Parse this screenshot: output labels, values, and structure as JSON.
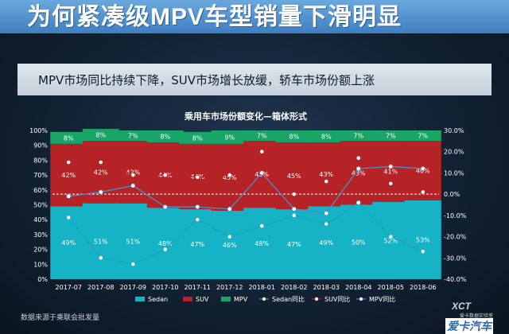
{
  "headline": "为何紧凑级MPV车型销量下滑明显",
  "subtitle": "MPV市场同比持续下降，SUV市场增长放缓，轿车市场份额上涨",
  "source": "数据来源于乘联会批发量",
  "logo": {
    "top": "XCT",
    "sub": "爱卡数据实验室",
    "main": "爱卡汽车"
  },
  "colors": {
    "sedan": "#16b3c6",
    "suv": "#b52326",
    "mpv": "#1aa568",
    "sedan_yoy": "#1aa6b8",
    "suv_yoy": "#b52326",
    "mpv_yoy": "#4a8fd0"
  },
  "chart_data": {
    "type": "bar",
    "stacked": true,
    "title": "乘用车市场份额变化—箱体形式",
    "categories": [
      "2017-07",
      "2017-08",
      "2017-09",
      "2017-10",
      "2017-11",
      "2017-12",
      "2018-01",
      "2018-02",
      "2018-03",
      "2018-04",
      "2018-05",
      "2018-06"
    ],
    "series": [
      {
        "name": "Sedan",
        "values": [
          49,
          51,
          51,
          48,
          47,
          46,
          48,
          47,
          49,
          50,
          52,
          53
        ],
        "labels": [
          "49%",
          "51%",
          "51%",
          "48%",
          "47%",
          "46%",
          "48%",
          "47%",
          "49%",
          "50%",
          "52%",
          "53%"
        ]
      },
      {
        "name": "SUV",
        "values": [
          42,
          42,
          42,
          44,
          44,
          45,
          45,
          45,
          43,
          43,
          41,
          40
        ],
        "labels": [
          "42%",
          "42%",
          "42%",
          "44%",
          "44%",
          "45%",
          "45%",
          "45%",
          "43%",
          "43%",
          "41%",
          "40%"
        ]
      },
      {
        "name": "MPV",
        "values": [
          8,
          8,
          7,
          8,
          8,
          9,
          7,
          8,
          8,
          7,
          7,
          7
        ],
        "labels": [
          "8%",
          "8%",
          "7%",
          "8%",
          "8%",
          "9%",
          "7%",
          "8%",
          "8%",
          "7%",
          "7%",
          "7%"
        ]
      }
    ],
    "line_series": [
      {
        "name": "Sedan同比",
        "values": [
          -11,
          -30,
          -33,
          -26,
          -12,
          -20,
          -15,
          -10,
          -14,
          -4,
          -20,
          -27
        ]
      },
      {
        "name": "SUV同比",
        "values": [
          15,
          15,
          9,
          9,
          8,
          9,
          20,
          0,
          6,
          17,
          5,
          1
        ]
      },
      {
        "name": "MPV同比",
        "values": [
          -1,
          1,
          4,
          -6,
          -6,
          -7,
          10,
          -7,
          -9,
          12,
          13,
          12
        ]
      }
    ],
    "y_left": {
      "min": 0,
      "max": 100,
      "ticks": [
        "0%",
        "10%",
        "20%",
        "30%",
        "40%",
        "50%",
        "60%",
        "70%",
        "80%",
        "90%",
        "100%"
      ]
    },
    "y_right": {
      "min": -40,
      "max": 30,
      "ticks": [
        "-40.0%",
        "-30.0%",
        "-20.0%",
        "-10.0%",
        "0.0%",
        "10.0%",
        "20.0%",
        "30.0%"
      ]
    },
    "legend": [
      "Sedan",
      "SUV",
      "MPV",
      "Sedan同比",
      "SUV同比",
      "MPV同比"
    ],
    "legend_position": "bottom",
    "grid": false,
    "reference_line_right": 0
  }
}
